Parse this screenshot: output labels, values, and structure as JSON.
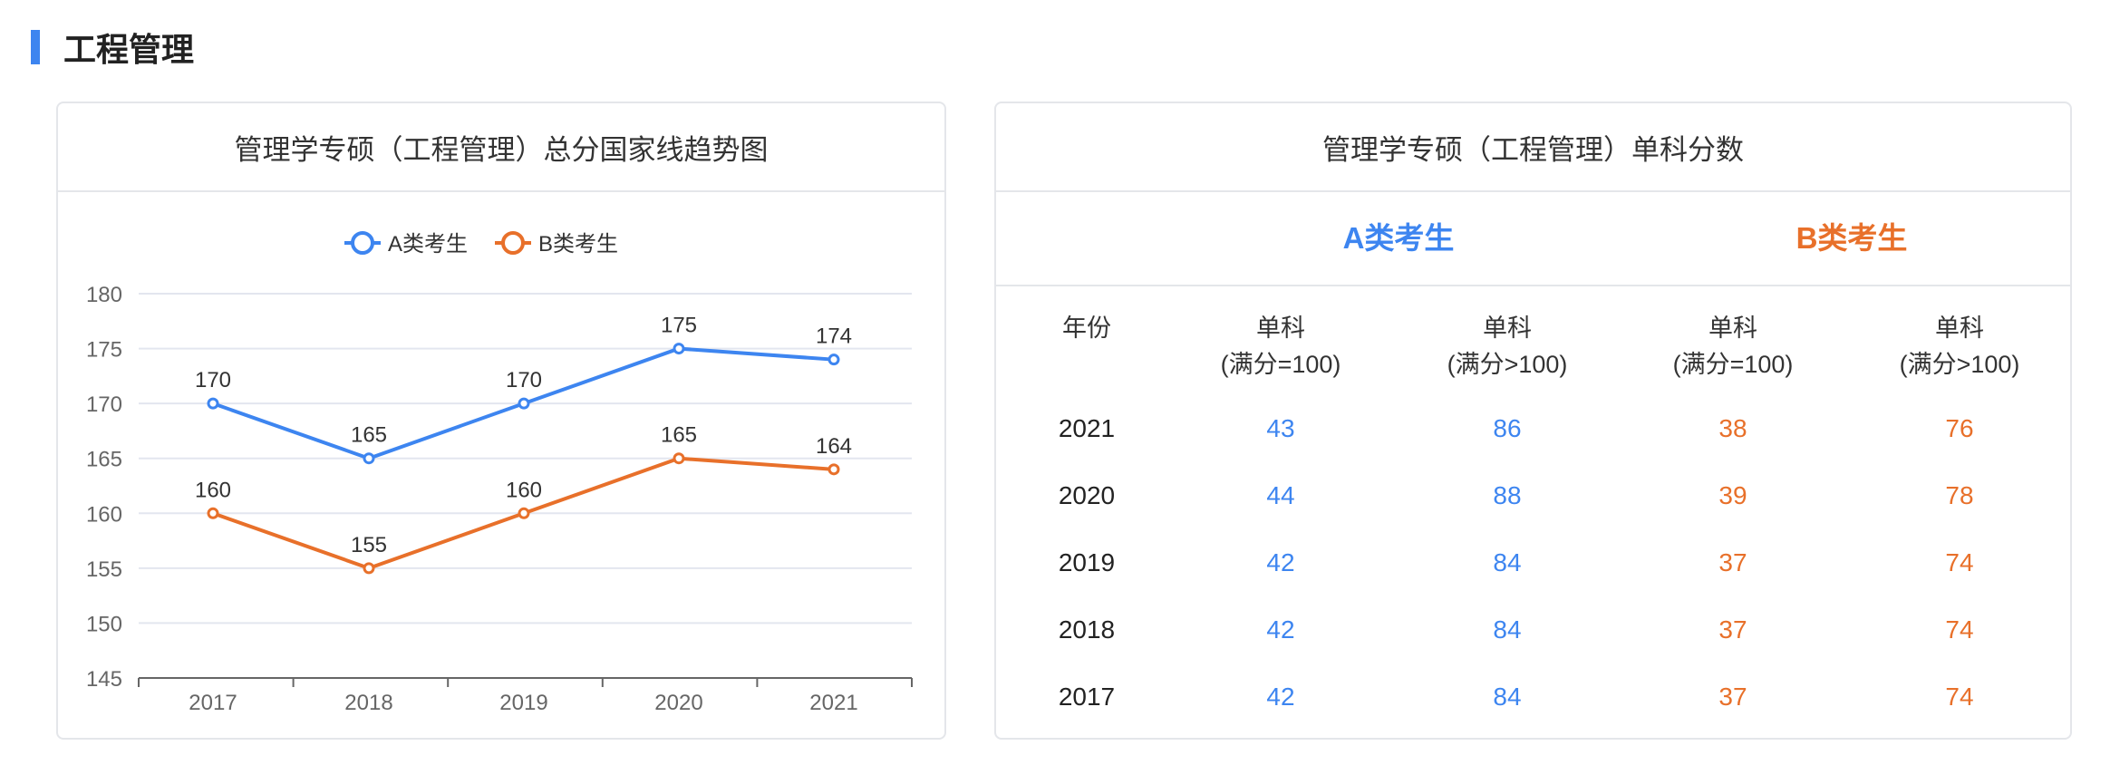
{
  "section": {
    "title": "工程管理"
  },
  "colors": {
    "accent": "#3d85f0",
    "series_a": "#3d85f0",
    "series_b": "#e8702a"
  },
  "chart_card": {
    "title": "管理学专硕（工程管理）总分国家线趋势图"
  },
  "chart_data": {
    "type": "line",
    "title": "管理学专硕（工程管理）总分国家线趋势图",
    "categories": [
      "2017",
      "2018",
      "2019",
      "2020",
      "2021"
    ],
    "series": [
      {
        "name": "A类考生",
        "values": [
          170,
          165,
          170,
          175,
          174
        ]
      },
      {
        "name": "B类考生",
        "values": [
          160,
          155,
          160,
          165,
          164
        ]
      }
    ],
    "ylim": [
      145,
      180
    ],
    "yticks": [
      145,
      150,
      155,
      160,
      165,
      170,
      175,
      180
    ],
    "grid": true,
    "legend_position": "top-center",
    "data_labels": true
  },
  "table_card": {
    "title": "管理学专硕（工程管理）单科分数",
    "group_a": "A类考生",
    "group_b": "B类考生",
    "year_header": "年份",
    "columns": [
      {
        "line1": "单科",
        "line2": "(满分=100)"
      },
      {
        "line1": "单科",
        "line2": "(满分>100)"
      },
      {
        "line1": "单科",
        "line2": "(满分=100)"
      },
      {
        "line1": "单科",
        "line2": "(满分>100)"
      }
    ],
    "rows": [
      {
        "year": "2021",
        "values": [
          "43",
          "86",
          "38",
          "76"
        ]
      },
      {
        "year": "2020",
        "values": [
          "44",
          "88",
          "39",
          "78"
        ]
      },
      {
        "year": "2019",
        "values": [
          "42",
          "84",
          "37",
          "74"
        ]
      },
      {
        "year": "2018",
        "values": [
          "42",
          "84",
          "37",
          "74"
        ]
      },
      {
        "year": "2017",
        "values": [
          "42",
          "84",
          "37",
          "74"
        ]
      }
    ]
  }
}
